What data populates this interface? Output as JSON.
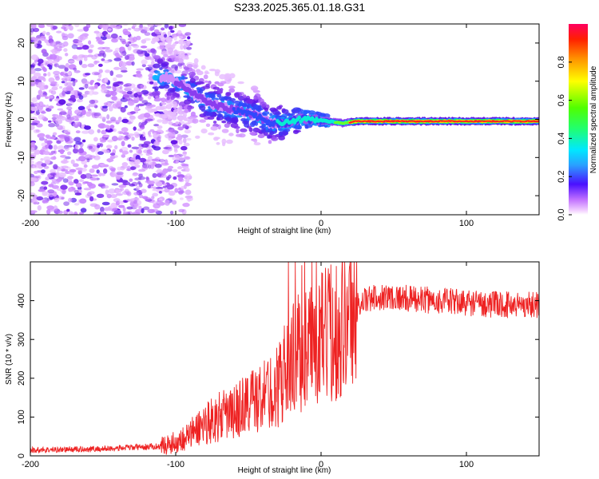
{
  "title": "S233.2025.365.01.18.G31",
  "chart_data": [
    {
      "type": "heatmap",
      "xlabel": "Height of straight line (km)",
      "ylabel": "Frequency (Hz)",
      "xlim": [
        -200,
        150
      ],
      "ylim": [
        -25,
        25
      ],
      "xticks": [
        -200,
        -100,
        0,
        100
      ],
      "xtick_labels": [
        "-200",
        "-100",
        "0",
        "100"
      ],
      "yticks": [
        -20,
        -10,
        0,
        10,
        20
      ],
      "ytick_labels": [
        "-20",
        "-10",
        "0",
        "10",
        "20"
      ],
      "colorbar": {
        "label": "Normalized spectral amplitude",
        "range": [
          0,
          1
        ],
        "ticks": [
          0.0,
          0.2,
          0.4,
          0.6,
          0.8
        ],
        "tick_labels": [
          "0.0",
          "0.2",
          "0.4",
          "0.6",
          "0.8"
        ],
        "colormap": "rainbow (magenta-blue-cyan-green-yellow-red)"
      },
      "ridge": {
        "description": "dominant Doppler frequency vs height",
        "x": [
          -105,
          -95,
          -85,
          -75,
          -65,
          -55,
          -45,
          -35,
          -25,
          -15,
          -5,
          5,
          15,
          25,
          50,
          100,
          150
        ],
        "y": [
          11,
          9,
          6,
          4,
          3,
          2,
          1,
          -1,
          -1,
          0,
          0,
          -0.5,
          -1,
          -0.5,
          -0.5,
          -0.5,
          -0.5
        ]
      }
    },
    {
      "type": "line",
      "xlabel": "Height of straight line (km)",
      "ylabel": "SNR (10 * v/v)",
      "xlim": [
        -200,
        150
      ],
      "ylim": [
        0,
        500
      ],
      "xticks": [
        -200,
        -100,
        0,
        100
      ],
      "xtick_labels": [
        "-200",
        "-100",
        "0",
        "100"
      ],
      "yticks": [
        0,
        100,
        200,
        300,
        400
      ],
      "ytick_labels": [
        "0",
        "100",
        "200",
        "300",
        "400"
      ],
      "series": [
        {
          "name": "SNR",
          "color": "#ee2222",
          "x": [
            -200,
            -150,
            -110,
            -100,
            -90,
            -80,
            -70,
            -60,
            -50,
            -40,
            -30,
            -20,
            -10,
            0,
            10,
            20,
            30,
            40,
            50,
            60,
            80,
            100,
            120,
            150
          ],
          "y": [
            15,
            18,
            25,
            35,
            55,
            85,
            100,
            110,
            140,
            150,
            180,
            250,
            280,
            300,
            330,
            375,
            400,
            410,
            410,
            405,
            400,
            395,
            390,
            390
          ]
        }
      ]
    }
  ]
}
